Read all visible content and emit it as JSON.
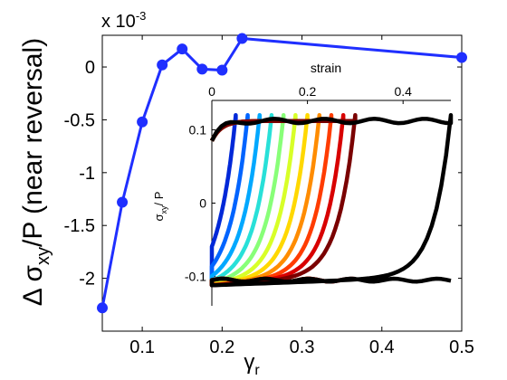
{
  "chart_data": [
    {
      "type": "line",
      "scale_note": "x 10",
      "scale_exp": "-3",
      "ylabel_prefix": "Δ σ",
      "ylabel_sub": "xy",
      "ylabel_suffix": "/P (near reversal)",
      "xlabel_main": "γ",
      "xlabel_sub": "r",
      "xlim": [
        0.05,
        0.5
      ],
      "ylim": [
        -2.5,
        0.3
      ],
      "xticks": [
        0.1,
        0.2,
        0.3,
        0.4,
        0.5
      ],
      "xtick_labels": [
        "0.1",
        "0.2",
        "0.3",
        "0.4",
        "0.5"
      ],
      "yticks": [
        -2,
        -1.5,
        -1,
        -0.5,
        0
      ],
      "ytick_labels": [
        "-2",
        "-1.5",
        "-1",
        "-0.5",
        "0"
      ],
      "color": "#1f2fff",
      "x": [
        0.05,
        0.075,
        0.1,
        0.125,
        0.15,
        0.175,
        0.2,
        0.225,
        0.5
      ],
      "y": [
        -2.28,
        -1.28,
        -0.52,
        0.02,
        0.17,
        -0.02,
        -0.03,
        0.27,
        0.09
      ]
    },
    {
      "type": "line",
      "title": "strain",
      "ylabel_main": "σ",
      "ylabel_sub": "xy",
      "ylabel_suffix": "/ P",
      "xlim": [
        0,
        0.5
      ],
      "ylim": [
        -0.14,
        0.14
      ],
      "xticks": [
        0,
        0.2,
        0.4
      ],
      "xtick_labels": [
        "0",
        "0.2",
        "0.4"
      ],
      "yticks": [
        -0.1,
        0,
        0.1
      ],
      "ytick_labels": [
        "-0.1",
        "0",
        "0.1"
      ],
      "series": [
        {
          "color": "#0028d8",
          "reversal_strain": 0.05
        },
        {
          "color": "#0064ff",
          "reversal_strain": 0.075
        },
        {
          "color": "#00a8ff",
          "reversal_strain": 0.1
        },
        {
          "color": "#28e0d8",
          "reversal_strain": 0.125
        },
        {
          "color": "#88ff78",
          "reversal_strain": 0.15
        },
        {
          "color": "#d8ff28",
          "reversal_strain": 0.175
        },
        {
          "color": "#ffd800",
          "reversal_strain": 0.2
        },
        {
          "color": "#ff8c00",
          "reversal_strain": 0.225
        },
        {
          "color": "#ff3c00",
          "reversal_strain": 0.25
        },
        {
          "color": "#d80000",
          "reversal_strain": 0.275
        },
        {
          "color": "#7a0000",
          "reversal_strain": 0.3
        },
        {
          "color": "#000000",
          "reversal_strain": 0.5
        }
      ]
    }
  ]
}
